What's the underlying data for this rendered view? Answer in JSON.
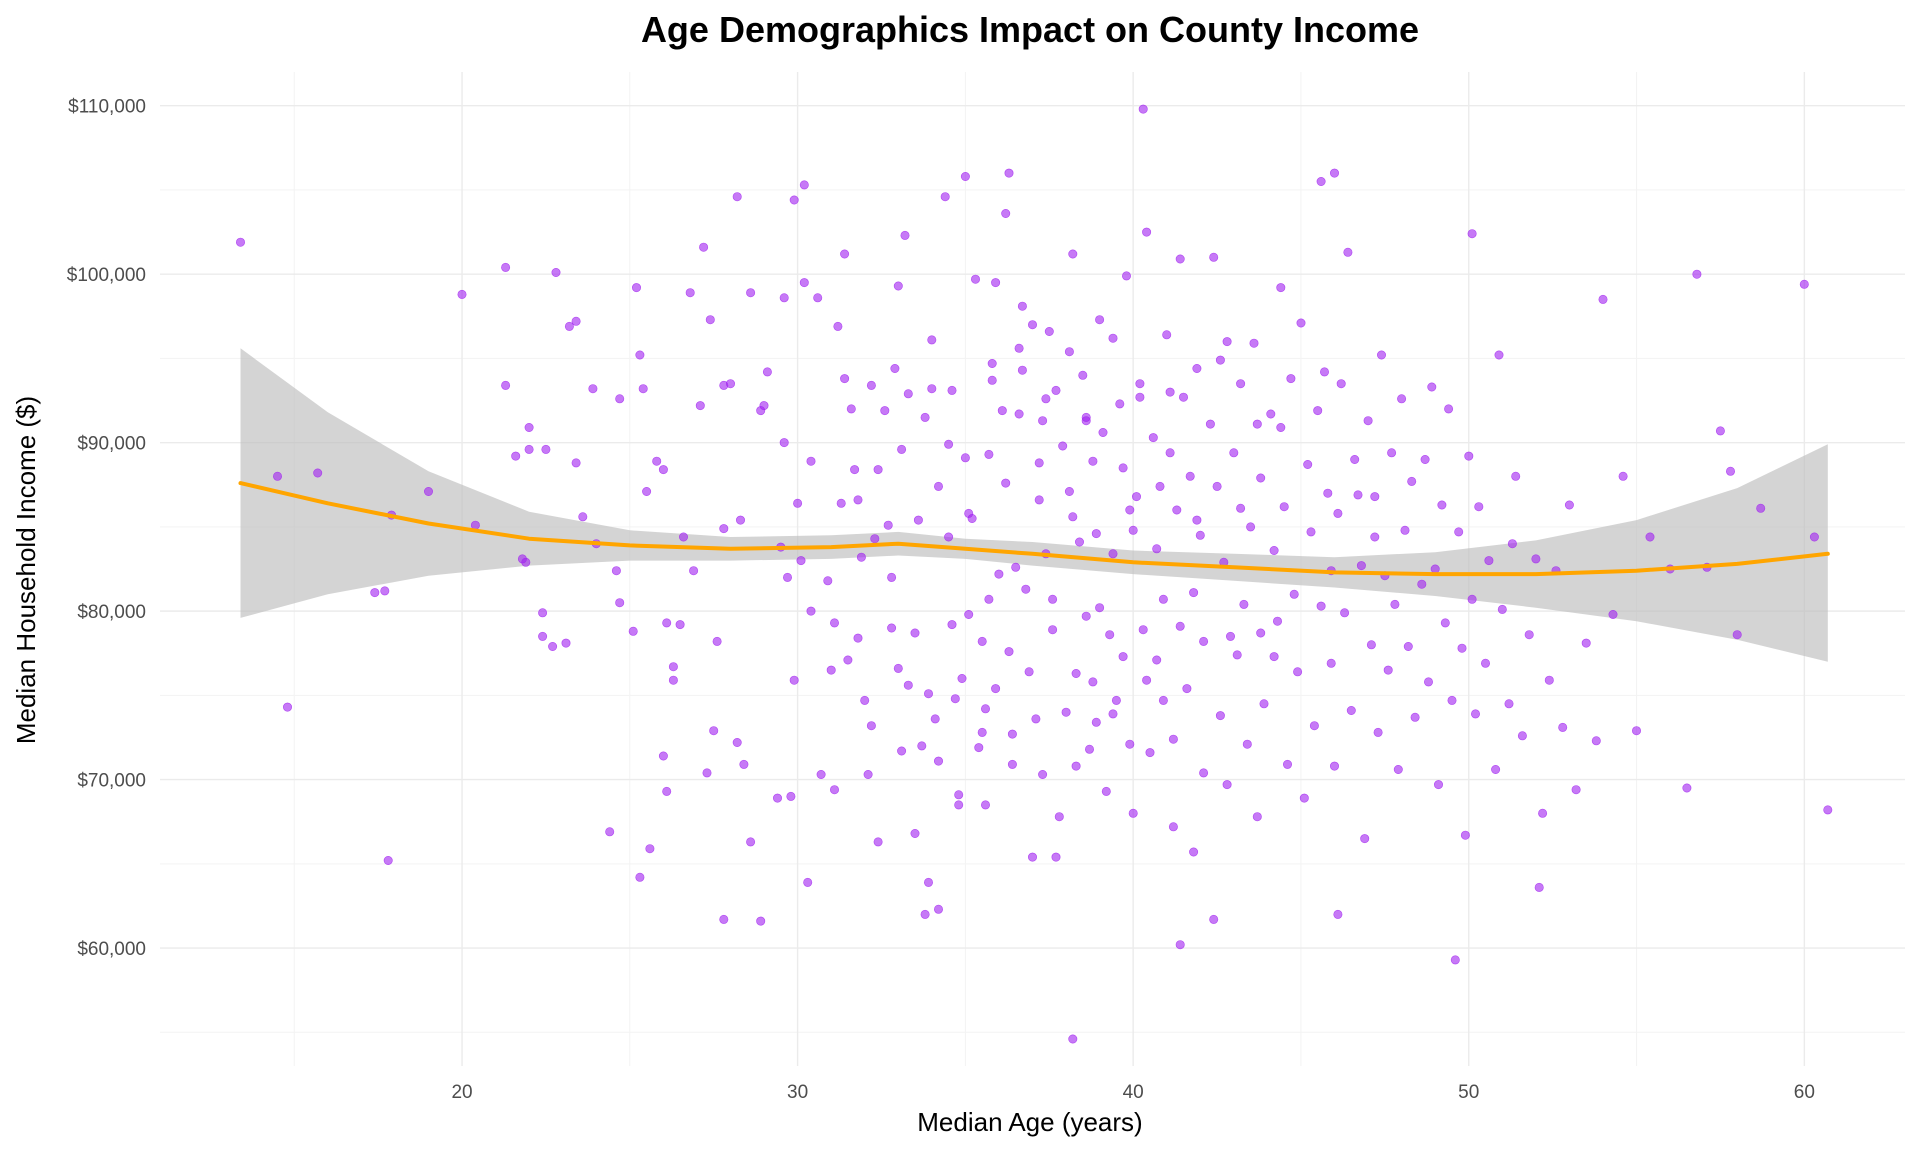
{
  "chart_data": {
    "type": "scatter",
    "title": "Age Demographics Impact on County Income",
    "xlabel": "Median Age (years)",
    "ylabel": "Median Household Income ($)",
    "xlim": [
      11,
      63
    ],
    "ylim": [
      53000,
      112000
    ],
    "x_ticks": [
      20,
      30,
      40,
      50,
      60
    ],
    "x_tick_labels": [
      "20",
      "30",
      "40",
      "50",
      "60"
    ],
    "y_ticks": [
      60000,
      70000,
      80000,
      90000,
      100000,
      110000
    ],
    "y_tick_labels": [
      "$60,000",
      "$70,000",
      "$80,000",
      "$90,000",
      "$100,000",
      "$110,000"
    ],
    "grid": true,
    "legend": "none",
    "colors": {
      "points": "#a020f0",
      "trend": "#ffa500",
      "band": "#bdbdbd"
    },
    "points": [
      [
        13.4,
        101900
      ],
      [
        14.8,
        74300
      ],
      [
        14.5,
        88000
      ],
      [
        15.7,
        88200
      ],
      [
        17.4,
        81100
      ],
      [
        17.7,
        81200
      ],
      [
        17.8,
        65200
      ],
      [
        17.9,
        85700
      ],
      [
        19.0,
        87100
      ],
      [
        20.0,
        98800
      ],
      [
        20.4,
        85100
      ],
      [
        21.3,
        100400
      ],
      [
        21.3,
        93400
      ],
      [
        21.6,
        89200
      ],
      [
        21.8,
        83100
      ],
      [
        21.9,
        82900
      ],
      [
        22.0,
        90900
      ],
      [
        22.0,
        89600
      ],
      [
        22.4,
        79900
      ],
      [
        22.4,
        78500
      ],
      [
        22.5,
        89600
      ],
      [
        22.7,
        77900
      ],
      [
        22.8,
        100100
      ],
      [
        23.1,
        78100
      ],
      [
        23.2,
        96900
      ],
      [
        23.4,
        97200
      ],
      [
        23.4,
        88800
      ],
      [
        23.6,
        85600
      ],
      [
        23.9,
        93200
      ],
      [
        24.0,
        84000
      ],
      [
        24.4,
        66900
      ],
      [
        24.6,
        82400
      ],
      [
        24.7,
        92600
      ],
      [
        24.7,
        80500
      ],
      [
        25.1,
        78800
      ],
      [
        25.2,
        99200
      ],
      [
        25.3,
        64200
      ],
      [
        25.3,
        95200
      ],
      [
        25.4,
        93200
      ],
      [
        25.5,
        87100
      ],
      [
        25.6,
        65900
      ],
      [
        25.8,
        88900
      ],
      [
        26.0,
        71400
      ],
      [
        26.0,
        88400
      ],
      [
        26.1,
        69300
      ],
      [
        26.1,
        79300
      ],
      [
        26.3,
        75900
      ],
      [
        26.3,
        76700
      ],
      [
        26.5,
        79200
      ],
      [
        26.6,
        84400
      ],
      [
        26.8,
        98900
      ],
      [
        26.9,
        82400
      ],
      [
        27.1,
        92200
      ],
      [
        27.2,
        101600
      ],
      [
        27.3,
        70400
      ],
      [
        27.4,
        97300
      ],
      [
        27.5,
        72900
      ],
      [
        27.6,
        78200
      ],
      [
        27.8,
        93400
      ],
      [
        27.8,
        84900
      ],
      [
        28.0,
        93500
      ],
      [
        28.2,
        72200
      ],
      [
        28.2,
        104600
      ],
      [
        28.3,
        85400
      ],
      [
        28.4,
        70900
      ],
      [
        28.6,
        98900
      ],
      [
        28.6,
        66300
      ],
      [
        28.9,
        91900
      ],
      [
        28.9,
        61600
      ],
      [
        29.0,
        92200
      ],
      [
        29.1,
        94200
      ],
      [
        29.4,
        68900
      ],
      [
        29.5,
        83800
      ],
      [
        29.6,
        90000
      ],
      [
        29.6,
        98600
      ],
      [
        29.7,
        82000
      ],
      [
        29.8,
        69000
      ],
      [
        29.9,
        75900
      ],
      [
        30.0,
        86400
      ],
      [
        30.1,
        83000
      ],
      [
        30.2,
        99500
      ],
      [
        30.2,
        105300
      ],
      [
        30.3,
        63900
      ],
      [
        30.4,
        88900
      ],
      [
        30.4,
        80000
      ],
      [
        30.6,
        98600
      ],
      [
        30.7,
        70300
      ],
      [
        30.9,
        81800
      ],
      [
        31.0,
        76500
      ],
      [
        31.1,
        79300
      ],
      [
        31.2,
        96900
      ],
      [
        31.3,
        86400
      ],
      [
        31.4,
        93800
      ],
      [
        31.4,
        101200
      ],
      [
        31.5,
        77100
      ],
      [
        31.6,
        92000
      ],
      [
        31.7,
        88400
      ],
      [
        31.8,
        86600
      ],
      [
        31.9,
        83200
      ],
      [
        32.0,
        74700
      ],
      [
        32.1,
        70300
      ],
      [
        32.2,
        73200
      ],
      [
        32.2,
        93400
      ],
      [
        32.3,
        84300
      ],
      [
        32.4,
        88400
      ],
      [
        32.4,
        66300
      ],
      [
        32.6,
        91900
      ],
      [
        32.8,
        82000
      ],
      [
        32.8,
        79000
      ],
      [
        32.9,
        94400
      ],
      [
        33.0,
        76600
      ],
      [
        33.1,
        89600
      ],
      [
        33.1,
        71700
      ],
      [
        33.2,
        102300
      ],
      [
        33.3,
        75600
      ],
      [
        33.3,
        92900
      ],
      [
        33.5,
        66800
      ],
      [
        33.6,
        85400
      ],
      [
        33.7,
        72000
      ],
      [
        33.8,
        91500
      ],
      [
        33.8,
        62000
      ],
      [
        33.9,
        75100
      ],
      [
        34.0,
        93200
      ],
      [
        34.0,
        96100
      ],
      [
        34.1,
        73600
      ],
      [
        34.2,
        87400
      ],
      [
        34.2,
        71100
      ],
      [
        34.4,
        104600
      ],
      [
        34.5,
        84400
      ],
      [
        34.6,
        79200
      ],
      [
        34.6,
        93100
      ],
      [
        34.7,
        74800
      ],
      [
        34.8,
        68500
      ],
      [
        34.8,
        69100
      ],
      [
        34.9,
        76000
      ],
      [
        35.0,
        89100
      ],
      [
        35.0,
        105800
      ],
      [
        35.1,
        85800
      ],
      [
        35.1,
        79800
      ],
      [
        35.3,
        99700
      ],
      [
        35.4,
        71900
      ],
      [
        35.5,
        78200
      ],
      [
        35.5,
        72800
      ],
      [
        35.6,
        68500
      ],
      [
        35.7,
        89300
      ],
      [
        35.8,
        94700
      ],
      [
        35.8,
        93700
      ],
      [
        35.9,
        75400
      ],
      [
        36.0,
        82200
      ],
      [
        36.1,
        91900
      ],
      [
        36.2,
        103600
      ],
      [
        36.2,
        87600
      ],
      [
        36.3,
        77600
      ],
      [
        36.4,
        70900
      ],
      [
        36.5,
        82600
      ],
      [
        36.6,
        91700
      ],
      [
        36.7,
        94300
      ],
      [
        36.7,
        98100
      ],
      [
        36.8,
        81300
      ],
      [
        36.9,
        76400
      ],
      [
        37.0,
        97000
      ],
      [
        37.0,
        65400
      ],
      [
        37.1,
        73600
      ],
      [
        37.2,
        86600
      ],
      [
        37.2,
        88800
      ],
      [
        37.3,
        70300
      ],
      [
        37.4,
        92600
      ],
      [
        37.5,
        96600
      ],
      [
        37.6,
        80700
      ],
      [
        37.6,
        78900
      ],
      [
        37.7,
        93100
      ],
      [
        37.8,
        67800
      ],
      [
        37.9,
        89800
      ],
      [
        38.0,
        74000
      ],
      [
        38.1,
        95400
      ],
      [
        38.1,
        87100
      ],
      [
        38.2,
        101200
      ],
      [
        38.3,
        70800
      ],
      [
        38.3,
        76300
      ],
      [
        38.4,
        84100
      ],
      [
        38.5,
        94000
      ],
      [
        38.6,
        91300
      ],
      [
        38.6,
        79700
      ],
      [
        38.7,
        71800
      ],
      [
        38.8,
        88900
      ],
      [
        38.9,
        84600
      ],
      [
        38.9,
        73400
      ],
      [
        39.0,
        97300
      ],
      [
        39.1,
        90600
      ],
      [
        39.2,
        69300
      ],
      [
        39.3,
        78600
      ],
      [
        39.4,
        96200
      ],
      [
        39.4,
        83400
      ],
      [
        39.5,
        74700
      ],
      [
        39.6,
        92300
      ],
      [
        39.7,
        88500
      ],
      [
        39.7,
        77300
      ],
      [
        39.8,
        99900
      ],
      [
        39.9,
        72100
      ],
      [
        40.0,
        84800
      ],
      [
        40.0,
        68000
      ],
      [
        40.1,
        86800
      ],
      [
        40.2,
        93500
      ],
      [
        40.3,
        78900
      ],
      [
        40.4,
        102500
      ],
      [
        40.4,
        75900
      ],
      [
        40.5,
        71600
      ],
      [
        40.6,
        90300
      ],
      [
        40.7,
        83700
      ],
      [
        40.8,
        87400
      ],
      [
        40.9,
        74700
      ],
      [
        40.9,
        80700
      ],
      [
        41.0,
        96400
      ],
      [
        41.1,
        93000
      ],
      [
        41.2,
        67200
      ],
      [
        41.2,
        72400
      ],
      [
        41.3,
        86000
      ],
      [
        41.4,
        100900
      ],
      [
        41.4,
        79100
      ],
      [
        41.5,
        92700
      ],
      [
        41.6,
        75400
      ],
      [
        41.7,
        88000
      ],
      [
        41.8,
        81100
      ],
      [
        41.8,
        65700
      ],
      [
        41.9,
        94400
      ],
      [
        42.0,
        84500
      ],
      [
        42.1,
        78200
      ],
      [
        42.1,
        70400
      ],
      [
        42.3,
        91100
      ],
      [
        42.4,
        101000
      ],
      [
        42.5,
        87400
      ],
      [
        42.6,
        73800
      ],
      [
        42.7,
        82900
      ],
      [
        42.8,
        96000
      ],
      [
        42.8,
        69700
      ],
      [
        43.0,
        89400
      ],
      [
        43.1,
        77400
      ],
      [
        43.2,
        93500
      ],
      [
        43.3,
        80400
      ],
      [
        43.4,
        72100
      ],
      [
        43.5,
        85000
      ],
      [
        43.6,
        95900
      ],
      [
        43.7,
        67800
      ],
      [
        43.8,
        87900
      ],
      [
        43.8,
        78700
      ],
      [
        43.9,
        74500
      ],
      [
        44.1,
        91700
      ],
      [
        44.2,
        83600
      ],
      [
        44.3,
        79400
      ],
      [
        44.4,
        99200
      ],
      [
        44.5,
        86200
      ],
      [
        44.6,
        70900
      ],
      [
        44.7,
        93800
      ],
      [
        44.8,
        81000
      ],
      [
        44.9,
        76400
      ],
      [
        45.0,
        97100
      ],
      [
        45.1,
        68900
      ],
      [
        45.2,
        88700
      ],
      [
        45.3,
        84700
      ],
      [
        45.4,
        73200
      ],
      [
        45.5,
        91900
      ],
      [
        45.6,
        80300
      ],
      [
        45.7,
        94200
      ],
      [
        45.8,
        87000
      ],
      [
        45.9,
        76900
      ],
      [
        46.0,
        70800
      ],
      [
        46.1,
        85800
      ],
      [
        46.2,
        93500
      ],
      [
        46.3,
        79900
      ],
      [
        46.4,
        101300
      ],
      [
        46.5,
        74100
      ],
      [
        46.6,
        89000
      ],
      [
        46.8,
        82700
      ],
      [
        46.9,
        66500
      ],
      [
        47.0,
        91300
      ],
      [
        47.1,
        78000
      ],
      [
        47.2,
        86800
      ],
      [
        47.3,
        72800
      ],
      [
        47.4,
        95200
      ],
      [
        47.5,
        82100
      ],
      [
        47.6,
        76500
      ],
      [
        47.7,
        89400
      ],
      [
        47.8,
        80400
      ],
      [
        47.9,
        70600
      ],
      [
        48.0,
        92600
      ],
      [
        48.1,
        84800
      ],
      [
        48.2,
        77900
      ],
      [
        48.3,
        87700
      ],
      [
        48.4,
        73700
      ],
      [
        48.6,
        81600
      ],
      [
        48.7,
        89000
      ],
      [
        48.8,
        75800
      ],
      [
        48.9,
        93300
      ],
      [
        49.0,
        82500
      ],
      [
        49.1,
        69700
      ],
      [
        49.2,
        86300
      ],
      [
        49.3,
        79300
      ],
      [
        49.4,
        92000
      ],
      [
        49.5,
        74700
      ],
      [
        49.7,
        84700
      ],
      [
        49.8,
        77800
      ],
      [
        49.9,
        66700
      ],
      [
        50.0,
        89200
      ],
      [
        50.1,
        80700
      ],
      [
        50.2,
        73900
      ],
      [
        50.3,
        86200
      ],
      [
        50.5,
        76900
      ],
      [
        50.6,
        83000
      ],
      [
        50.8,
        70600
      ],
      [
        50.9,
        95200
      ],
      [
        51.0,
        80100
      ],
      [
        51.2,
        74500
      ],
      [
        51.3,
        84000
      ],
      [
        51.4,
        88000
      ],
      [
        51.6,
        72600
      ],
      [
        51.8,
        78600
      ],
      [
        52.0,
        83100
      ],
      [
        52.2,
        68000
      ],
      [
        52.4,
        75900
      ],
      [
        52.6,
        82400
      ],
      [
        52.8,
        73100
      ],
      [
        53.0,
        86300
      ],
      [
        53.2,
        69400
      ],
      [
        53.5,
        78100
      ],
      [
        53.8,
        72300
      ],
      [
        54.0,
        98500
      ],
      [
        54.3,
        79800
      ],
      [
        54.6,
        88000
      ],
      [
        55.0,
        72900
      ],
      [
        55.4,
        84400
      ],
      [
        56.0,
        82500
      ],
      [
        56.5,
        69500
      ],
      [
        56.8,
        100000
      ],
      [
        57.1,
        82600
      ],
      [
        57.5,
        90700
      ],
      [
        57.8,
        88300
      ],
      [
        58.0,
        78600
      ],
      [
        58.7,
        86100
      ],
      [
        60.0,
        99400
      ],
      [
        60.3,
        84400
      ],
      [
        60.7,
        68200
      ],
      [
        33.5,
        78700
      ],
      [
        36.6,
        95600
      ],
      [
        38.2,
        85600
      ],
      [
        39.0,
        80200
      ],
      [
        40.7,
        77100
      ],
      [
        42.6,
        94900
      ],
      [
        44.4,
        90900
      ],
      [
        45.9,
        82400
      ],
      [
        47.2,
        84400
      ],
      [
        31.8,
        78400
      ],
      [
        34.5,
        89900
      ],
      [
        37.4,
        83400
      ],
      [
        41.1,
        89400
      ],
      [
        43.7,
        91100
      ],
      [
        46.7,
        86900
      ],
      [
        32.7,
        85100
      ],
      [
        35.7,
        80700
      ],
      [
        39.4,
        73900
      ],
      [
        42.9,
        78500
      ],
      [
        38.2,
        54600
      ],
      [
        40.3,
        109800
      ],
      [
        49.6,
        59300
      ],
      [
        41.4,
        60200
      ],
      [
        46.0,
        106000
      ],
      [
        36.3,
        106000
      ],
      [
        52.1,
        63600
      ],
      [
        33.0,
        99300
      ],
      [
        29.9,
        104400
      ],
      [
        44.2,
        77300
      ],
      [
        35.9,
        99500
      ],
      [
        45.6,
        105500
      ],
      [
        50.1,
        102400
      ],
      [
        37.7,
        65400
      ],
      [
        31.1,
        69400
      ],
      [
        42.4,
        61700
      ],
      [
        34.2,
        62300
      ],
      [
        46.1,
        62000
      ],
      [
        27.8,
        61700
      ],
      [
        33.9,
        63900
      ],
      [
        35.6,
        74200
      ],
      [
        36.4,
        72700
      ],
      [
        38.8,
        75800
      ],
      [
        39.9,
        86000
      ],
      [
        41.9,
        85400
      ],
      [
        43.2,
        86100
      ],
      [
        37.3,
        91300
      ],
      [
        40.2,
        92700
      ],
      [
        35.2,
        85500
      ],
      [
        38.6,
        91500
      ]
    ],
    "trend_line": {
      "x": [
        13.4,
        16,
        19,
        22,
        25,
        28,
        31,
        33,
        35,
        37,
        40,
        43,
        46,
        49,
        52,
        55,
        58,
        60.7
      ],
      "y": [
        87600,
        86400,
        85200,
        84300,
        83900,
        83700,
        83800,
        84000,
        83700,
        83400,
        82900,
        82600,
        82300,
        82200,
        82200,
        82400,
        82800,
        83400
      ],
      "lower": [
        79600,
        81000,
        82100,
        82700,
        83000,
        83000,
        83100,
        83300,
        83100,
        82700,
        82200,
        81800,
        81400,
        80900,
        80200,
        79400,
        78300,
        77000
      ],
      "upper": [
        95600,
        91800,
        88300,
        85900,
        84800,
        84400,
        84500,
        84700,
        84300,
        84100,
        83600,
        83400,
        83200,
        83500,
        84200,
        85400,
        87300,
        89900
      ]
    }
  }
}
